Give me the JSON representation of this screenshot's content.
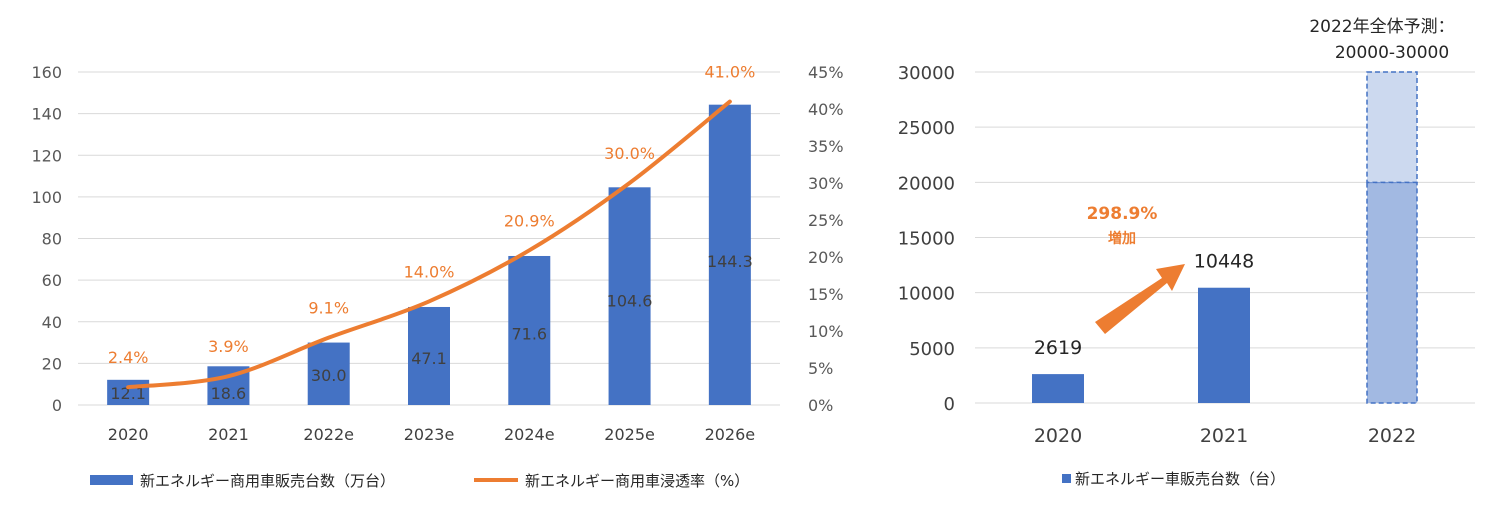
{
  "chart_data": [
    {
      "type": "bar",
      "categories": [
        "2020",
        "2021",
        "2022e",
        "2023e",
        "2024e",
        "2025e",
        "2026e"
      ],
      "series": [
        {
          "name": "新エネルギー商用車販売台数（万台）",
          "type": "bar",
          "axis": "left",
          "values": [
            12.1,
            18.6,
            30.0,
            47.1,
            71.6,
            104.6,
            144.3
          ],
          "labels": [
            "12.1",
            "18.6",
            "30.0",
            "47.1",
            "71.6",
            "104.6",
            "144.3"
          ]
        },
        {
          "name": "新エネルギー商用車浸透率（%）",
          "type": "line",
          "axis": "right",
          "values": [
            2.4,
            3.9,
            9.1,
            14.0,
            20.9,
            30.0,
            41.0
          ],
          "labels": [
            "2.4%",
            "3.9%",
            "9.1%",
            "14.0%",
            "20.9%",
            "30.0%",
            "41.0%"
          ]
        }
      ],
      "ylim": [
        0,
        160
      ],
      "yticks": [
        "0",
        "20",
        "40",
        "60",
        "80",
        "100",
        "120",
        "140",
        "160"
      ],
      "y2lim": [
        0,
        45
      ],
      "y2ticks": [
        "0%",
        "5%",
        "10%",
        "15%",
        "20%",
        "25%",
        "30%",
        "35%",
        "40%",
        "45%"
      ],
      "grid": true,
      "legend": "bottom",
      "colors": {
        "bar": "#4472C4",
        "line": "#ED7D31",
        "grid": "#D9D9D9"
      }
    },
    {
      "type": "bar",
      "categories": [
        "2020",
        "2021",
        "2022"
      ],
      "series": [
        {
          "name": "新エネルギー車販売台数（台）",
          "values": [
            2619,
            10448,
            null
          ],
          "labels": [
            "2619",
            "10448",
            ""
          ]
        }
      ],
      "forecast": {
        "category": "2022",
        "low": 20000,
        "high": 30000
      },
      "annotation": {
        "title_line1": "2022年全体予測：",
        "title_line2": "20000-30000",
        "arrow_value": "298.9%",
        "arrow_text": "増加"
      },
      "ylim": [
        0,
        30000
      ],
      "yticks": [
        "0",
        "5000",
        "10000",
        "15000",
        "20000",
        "25000",
        "30000"
      ],
      "grid": true,
      "legend": "bottom",
      "colors": {
        "bar": "#4472C4",
        "forecast_low": "#A2B9E2",
        "forecast_high": "#CCD9EF",
        "arrow": "#ED7D31"
      }
    }
  ]
}
